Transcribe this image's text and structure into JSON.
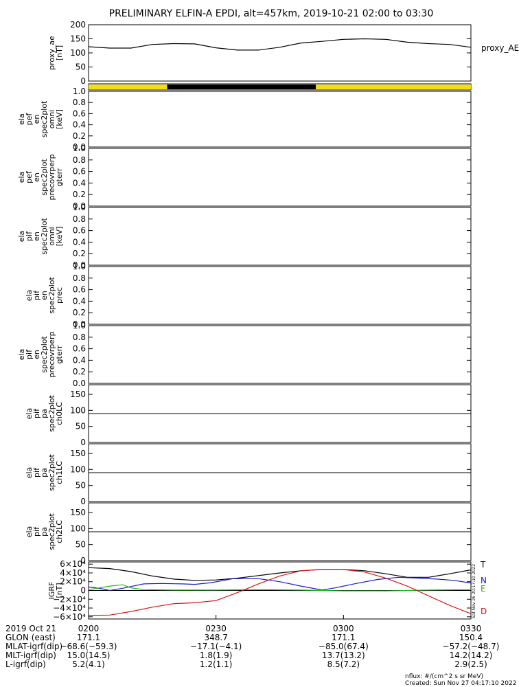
{
  "title": "PRELIMINARY ELFIN-A EPDI, alt=457km, 2019-10-21 02:00 to 03:30",
  "colors": {
    "black": "#000000",
    "yellow": "#f5dc14",
    "blue": "#1a1acc",
    "green": "#1fb81f",
    "red": "#dd1111"
  },
  "chart_data": [
    {
      "type": "line",
      "panel": "proxy_ae",
      "ylabel": [
        "proxy_ae",
        "[nT]"
      ],
      "ylim": [
        0,
        200
      ],
      "yticks": [
        "200",
        "150",
        "100",
        "50",
        "0"
      ],
      "legend": "proxy_AE",
      "series": [
        {
          "name": "proxy_AE",
          "x_min": [
            0,
            5,
            10,
            15,
            20,
            25,
            30,
            35,
            40,
            45,
            50,
            55,
            60,
            65,
            70,
            75,
            80,
            85,
            90
          ],
          "values": [
            122,
            117,
            117,
            130,
            133,
            132,
            118,
            110,
            110,
            120,
            135,
            141,
            148,
            150,
            148,
            138,
            133,
            130,
            120
          ]
        }
      ]
    },
    {
      "type": "bar",
      "panel": "sunlight_bar",
      "segments": [
        {
          "start_min": 0,
          "end_min": 18.5,
          "color": "#f5dc14"
        },
        {
          "start_min": 18.5,
          "end_min": 53.5,
          "color": "#000000"
        },
        {
          "start_min": 53.5,
          "end_min": 90,
          "color": "#f5dc14"
        }
      ]
    },
    {
      "type": "heatmap",
      "panel": "ela_pef_omni",
      "ylabel": [
        "ela",
        "pef",
        "en",
        "spec2plot",
        "omni",
        "[keV]"
      ],
      "yticks": [
        "1.0",
        "0.8",
        "0.6",
        "0.4",
        "0.2",
        "0.0"
      ],
      "ylim": [
        0,
        1
      ],
      "values": []
    },
    {
      "type": "heatmap",
      "panel": "ela_pef_precovrperp",
      "ylabel": [
        "ela",
        "pef",
        "en",
        "spec2plot",
        "precovrperp",
        "gterr"
      ],
      "yticks": [
        "1.0",
        "0.8",
        "0.6",
        "0.4",
        "0.2",
        "0.0"
      ],
      "ylim": [
        0,
        1
      ],
      "values": []
    },
    {
      "type": "heatmap",
      "panel": "ela_pif_omni",
      "ylabel": [
        "ela",
        "pif",
        "en",
        "spec2plot",
        "omni",
        "[keV]"
      ],
      "yticks": [
        "1.0",
        "0.8",
        "0.6",
        "0.4",
        "0.2",
        "0.0"
      ],
      "ylim": [
        0,
        1
      ],
      "values": []
    },
    {
      "type": "heatmap",
      "panel": "ela_pif_prec",
      "ylabel": [
        "ela",
        "pif",
        "en",
        "spec2plot",
        "prec"
      ],
      "yticks": [
        "1.0",
        "0.8",
        "0.6",
        "0.4",
        "0.2",
        "0.0"
      ],
      "ylim": [
        0,
        1
      ],
      "values": []
    },
    {
      "type": "heatmap",
      "panel": "ela_pif_precovrperp",
      "ylabel": [
        "ela",
        "pif",
        "en",
        "spec2plot",
        "precovrperp",
        "gterr"
      ],
      "yticks": [
        "1.0",
        "0.8",
        "0.6",
        "0.4",
        "0.2",
        "0.0"
      ],
      "ylim": [
        0,
        1
      ],
      "values": []
    },
    {
      "type": "heatmap",
      "panel": "ela_pif_pa_ch0LC",
      "ylabel": [
        "ela",
        "pif",
        "pa",
        "spec2plot",
        "ch0LC"
      ],
      "yticks": [
        "150",
        "100",
        "50",
        "0"
      ],
      "ylim": [
        0,
        180
      ],
      "hline": 90,
      "values": []
    },
    {
      "type": "heatmap",
      "panel": "ela_pif_pa_ch1LC",
      "ylabel": [
        "ela",
        "pif",
        "pa",
        "spec2plot",
        "ch1LC"
      ],
      "yticks": [
        "150",
        "100",
        "50",
        "0"
      ],
      "ylim": [
        0,
        180
      ],
      "hline": 90,
      "values": []
    },
    {
      "type": "heatmap",
      "panel": "ela_pif_pa_ch2LC",
      "ylabel": [
        "ela",
        "pif",
        "pa",
        "spec2plot",
        "ch2LC"
      ],
      "yticks": [
        "150",
        "100",
        "50",
        "0"
      ],
      "ylim": [
        0,
        180
      ],
      "hline": 90,
      "values": []
    },
    {
      "type": "line",
      "panel": "igrf",
      "ylabel": [
        "IGRF",
        "[nT]"
      ],
      "ylim": [
        -65000,
        65000
      ],
      "yticks": [
        "6×10⁴",
        "4×10⁴",
        "2×10⁴",
        "0",
        "−2×10⁴",
        "−4×10⁴",
        "−6×10⁴"
      ],
      "series": [
        {
          "name": "T",
          "color": "#000000",
          "x_min": [
            0,
            5,
            10,
            15,
            20,
            25,
            30,
            35,
            40,
            45,
            50,
            55,
            60,
            65,
            70,
            75,
            80,
            85,
            90
          ],
          "values": [
            52000,
            50000,
            43000,
            33000,
            26000,
            23000,
            24000,
            28000,
            34000,
            40000,
            45000,
            48000,
            48000,
            45000,
            38000,
            30000,
            30000,
            38000,
            47000
          ]
        },
        {
          "name": "N",
          "color": "#1a1acc",
          "x_min": [
            0,
            3,
            5,
            8,
            13,
            17,
            22,
            25,
            29,
            34,
            40,
            45,
            50,
            55,
            58,
            63,
            68,
            73,
            78,
            82,
            86,
            90
          ],
          "values": [
            8000,
            4000,
            0,
            5000,
            15000,
            16000,
            15000,
            14000,
            18000,
            27000,
            27000,
            20000,
            10000,
            1000,
            6000,
            16000,
            25000,
            30000,
            28000,
            26000,
            23000,
            17000
          ]
        },
        {
          "name": "E",
          "color": "#1fb81f",
          "x_min": [
            0,
            2,
            5,
            8,
            10,
            13,
            20,
            30,
            40,
            50,
            60,
            70,
            80,
            90
          ],
          "values": [
            2000,
            5000,
            10000,
            13000,
            6000,
            2000,
            1000,
            1000,
            2000,
            1000,
            -1000,
            -1000,
            1000,
            2000
          ]
        },
        {
          "name": "D",
          "color": "#dd1111",
          "x_min": [
            0,
            5,
            10,
            15,
            20,
            25,
            30,
            35,
            40,
            45,
            50,
            55,
            60,
            65,
            70,
            75,
            80,
            85,
            90
          ],
          "values": [
            -57000,
            -56000,
            -48000,
            -38000,
            -30000,
            -28000,
            -23000,
            -5000,
            15000,
            33000,
            45000,
            48000,
            48000,
            42000,
            28000,
            10000,
            -12000,
            -34000,
            -53000
          ]
        }
      ]
    }
  ],
  "x_axis": {
    "ticks_min": [
      0,
      30,
      60,
      90
    ],
    "row_labels": [
      "2019 Oct 21",
      "GLON (east)",
      "MLAT-igrf(dip)",
      "MLT-igrf(dip)",
      "L-igrf(dip)"
    ],
    "rows": [
      [
        "0200",
        "0230",
        "0300",
        "0330"
      ],
      [
        "171.1",
        "348.7",
        "171.1",
        "150.4"
      ],
      [
        "−68.6(−59.3)",
        "−17.1(−4.1)",
        "−85.0(67.4)",
        "−57.2(−48.7)"
      ],
      [
        "15.0(14.5)",
        "1.8(1.9)",
        "13.7(13.2)",
        "14.2(14.2)"
      ],
      [
        "5.2(4.1)",
        "1.2(1.1)",
        "8.5(7.2)",
        "2.9(2.5)"
      ]
    ]
  },
  "footer": {
    "units": "nflux: #/(cm^2 s sr MeV)",
    "created": "Created: Sun Nov 27 04:17:10 2022",
    "side_stamp": "Sat Nov 26 20:17:10 2022"
  }
}
